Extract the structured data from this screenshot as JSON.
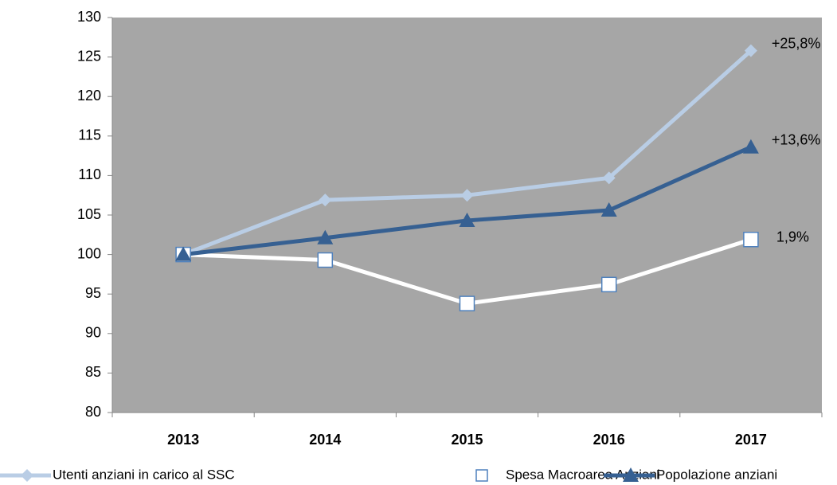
{
  "chart_data": {
    "type": "line",
    "categories": [
      "2013",
      "2014",
      "2015",
      "2016",
      "2017"
    ],
    "series": [
      {
        "name": "Utenti anziani in carico al SSC",
        "color": "#b9cde5",
        "marker": "diamond",
        "values": [
          100,
          106.9,
          107.5,
          109.7,
          125.8
        ]
      },
      {
        "name": "Spesa Macroarea Anziani",
        "color": "#ffffff",
        "marker": "square",
        "values": [
          100,
          99.3,
          93.8,
          96.2,
          101.9
        ]
      },
      {
        "name": "Popolazione anziani",
        "color": "#366092",
        "marker": "triangle",
        "values": [
          100,
          102.1,
          104.3,
          105.6,
          113.6
        ]
      }
    ],
    "annotations": [
      "+25,8%",
      "1,9%",
      "+13,6%"
    ],
    "ylim": [
      80,
      130
    ],
    "yticks": [
      80,
      85,
      90,
      95,
      100,
      105,
      110,
      115,
      120,
      125,
      130
    ],
    "grid": false,
    "plot_background": "#a6a6a6",
    "legend": "bottom"
  }
}
